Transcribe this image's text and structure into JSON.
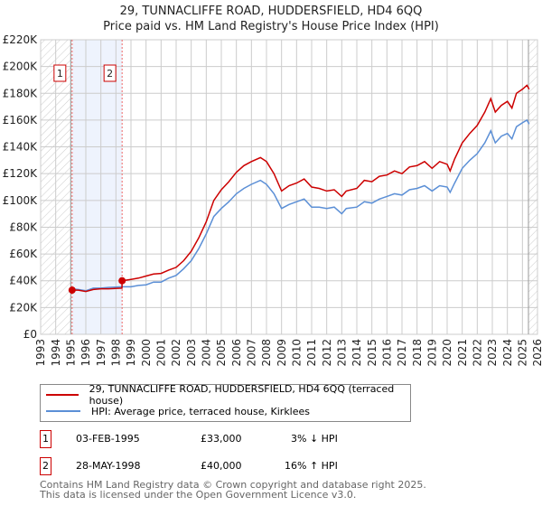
{
  "title_line1": "29, TUNNACLIFFE ROAD, HUDDERSFIELD, HD4 6QQ",
  "title_line2": "Price paid vs. HM Land Registry's House Price Index (HPI)",
  "chart_data": {
    "type": "line",
    "xlim": [
      1993,
      2026
    ],
    "ylim": [
      0,
      220000
    ],
    "x_ticks": [
      "1993",
      "1994",
      "1995",
      "1996",
      "1997",
      "1998",
      "1999",
      "2000",
      "2001",
      "2002",
      "2003",
      "2004",
      "2005",
      "2006",
      "2007",
      "2008",
      "2009",
      "2010",
      "2011",
      "2012",
      "2013",
      "2014",
      "2015",
      "2016",
      "2017",
      "2018",
      "2019",
      "2020",
      "2021",
      "2022",
      "2023",
      "2024",
      "2025",
      "2026"
    ],
    "y_ticks": [
      {
        "v": 0,
        "label": "£0"
      },
      {
        "v": 20000,
        "label": "£20K"
      },
      {
        "v": 40000,
        "label": "£40K"
      },
      {
        "v": 60000,
        "label": "£60K"
      },
      {
        "v": 80000,
        "label": "£80K"
      },
      {
        "v": 100000,
        "label": "£100K"
      },
      {
        "v": 120000,
        "label": "£120K"
      },
      {
        "v": 140000,
        "label": "£140K"
      },
      {
        "v": 160000,
        "label": "£160K"
      },
      {
        "v": 180000,
        "label": "£180K"
      },
      {
        "v": 200000,
        "label": "£200K"
      },
      {
        "v": 220000,
        "label": "£220K"
      }
    ],
    "grid": true,
    "hatched_before": 1995.0,
    "hatched_after": 2025.4,
    "shaded_range": [
      1995.09,
      1998.41
    ],
    "series": [
      {
        "name": "29, TUNNACLIFFE ROAD, HUDDERSFIELD, HD4 6QQ (terraced house)",
        "color": "#cc0000",
        "points": [
          [
            1995.09,
            33000
          ],
          [
            1995.5,
            33000
          ],
          [
            1996,
            32000
          ],
          [
            1996.5,
            33500
          ],
          [
            1997,
            34000
          ],
          [
            1997.5,
            34000
          ],
          [
            1998.4,
            34500
          ],
          [
            1998.41,
            40000
          ],
          [
            1999,
            41000
          ],
          [
            1999.5,
            42000
          ],
          [
            2000,
            43500
          ],
          [
            2000.5,
            45000
          ],
          [
            2001,
            45500
          ],
          [
            2001.5,
            48000
          ],
          [
            2002,
            50000
          ],
          [
            2002.5,
            55000
          ],
          [
            2003,
            62000
          ],
          [
            2003.5,
            72000
          ],
          [
            2004,
            84000
          ],
          [
            2004.5,
            100000
          ],
          [
            2005,
            108000
          ],
          [
            2005.5,
            114000
          ],
          [
            2006,
            121000
          ],
          [
            2006.5,
            126000
          ],
          [
            2007,
            129000
          ],
          [
            2007.6,
            132000
          ],
          [
            2008,
            129000
          ],
          [
            2008.5,
            120000
          ],
          [
            2009,
            107000
          ],
          [
            2009.5,
            111000
          ],
          [
            2010,
            113000
          ],
          [
            2010.5,
            116000
          ],
          [
            2011,
            110000
          ],
          [
            2011.5,
            109000
          ],
          [
            2012,
            107000
          ],
          [
            2012.5,
            108000
          ],
          [
            2013,
            103000
          ],
          [
            2013.3,
            107000
          ],
          [
            2014,
            109000
          ],
          [
            2014.5,
            115000
          ],
          [
            2015,
            114000
          ],
          [
            2015.5,
            118000
          ],
          [
            2016,
            119000
          ],
          [
            2016.5,
            122000
          ],
          [
            2017,
            120000
          ],
          [
            2017.5,
            125000
          ],
          [
            2018,
            126000
          ],
          [
            2018.5,
            129000
          ],
          [
            2019,
            124000
          ],
          [
            2019.5,
            129000
          ],
          [
            2020,
            127000
          ],
          [
            2020.2,
            122000
          ],
          [
            2020.5,
            131000
          ],
          [
            2021,
            143000
          ],
          [
            2021.5,
            150000
          ],
          [
            2022,
            156000
          ],
          [
            2022.5,
            166000
          ],
          [
            2022.9,
            176000
          ],
          [
            2023.2,
            166000
          ],
          [
            2023.6,
            171000
          ],
          [
            2024,
            174000
          ],
          [
            2024.3,
            169000
          ],
          [
            2024.6,
            180000
          ],
          [
            2025,
            183000
          ],
          [
            2025.3,
            186000
          ],
          [
            2025.45,
            183000
          ]
        ]
      },
      {
        "name": "HPI: Average price, terraced house, Kirklees",
        "color": "#5b8fd6",
        "points": [
          [
            1995.0,
            34000
          ],
          [
            1995.5,
            33500
          ],
          [
            1996,
            32500
          ],
          [
            1996.5,
            34500
          ],
          [
            1997,
            34500
          ],
          [
            1997.5,
            35000
          ],
          [
            1998.4,
            35500
          ],
          [
            1999,
            35500
          ],
          [
            1999.5,
            36500
          ],
          [
            2000,
            37000
          ],
          [
            2000.5,
            39000
          ],
          [
            2001,
            39000
          ],
          [
            2001.5,
            42000
          ],
          [
            2002,
            44000
          ],
          [
            2002.5,
            49000
          ],
          [
            2003,
            55000
          ],
          [
            2003.5,
            64000
          ],
          [
            2004,
            75000
          ],
          [
            2004.5,
            88000
          ],
          [
            2005,
            94000
          ],
          [
            2005.5,
            99000
          ],
          [
            2006,
            105000
          ],
          [
            2006.5,
            109000
          ],
          [
            2007,
            112000
          ],
          [
            2007.6,
            115000
          ],
          [
            2008,
            112000
          ],
          [
            2008.5,
            105000
          ],
          [
            2009,
            94000
          ],
          [
            2009.5,
            97000
          ],
          [
            2010,
            99000
          ],
          [
            2010.5,
            101000
          ],
          [
            2011,
            95000
          ],
          [
            2011.5,
            95000
          ],
          [
            2012,
            94000
          ],
          [
            2012.5,
            95000
          ],
          [
            2013,
            90000
          ],
          [
            2013.3,
            94000
          ],
          [
            2014,
            95000
          ],
          [
            2014.5,
            99000
          ],
          [
            2015,
            98000
          ],
          [
            2015.5,
            101000
          ],
          [
            2016,
            103000
          ],
          [
            2016.5,
            105000
          ],
          [
            2017,
            104000
          ],
          [
            2017.5,
            108000
          ],
          [
            2018,
            109000
          ],
          [
            2018.5,
            111000
          ],
          [
            2019,
            107000
          ],
          [
            2019.5,
            111000
          ],
          [
            2020,
            110000
          ],
          [
            2020.2,
            106000
          ],
          [
            2020.5,
            113000
          ],
          [
            2021,
            124000
          ],
          [
            2021.5,
            130000
          ],
          [
            2022,
            135000
          ],
          [
            2022.5,
            143000
          ],
          [
            2022.9,
            152000
          ],
          [
            2023.2,
            143000
          ],
          [
            2023.6,
            148000
          ],
          [
            2024,
            150000
          ],
          [
            2024.3,
            146000
          ],
          [
            2024.6,
            155000
          ],
          [
            2025,
            158000
          ],
          [
            2025.3,
            160000
          ],
          [
            2025.45,
            157000
          ]
        ]
      }
    ],
    "markers": [
      {
        "label": "1",
        "x": 1995.09,
        "y": 33000
      },
      {
        "label": "2",
        "x": 1998.41,
        "y": 40000
      }
    ]
  },
  "legend": {
    "red_label": "29, TUNNACLIFFE ROAD, HUDDERSFIELD, HD4 6QQ (terraced house)",
    "blue_label": "HPI: Average price, terraced house, Kirklees"
  },
  "transactions": [
    {
      "num": "1",
      "date": "03-FEB-1995",
      "price": "£33,000",
      "hpi": "3% ↓ HPI"
    },
    {
      "num": "2",
      "date": "28-MAY-1998",
      "price": "£40,000",
      "hpi": "16% ↑ HPI"
    }
  ],
  "footer": {
    "line1": "Contains HM Land Registry data © Crown copyright and database right 2025.",
    "line2": "This data is licensed under the Open Government Licence v3.0."
  }
}
